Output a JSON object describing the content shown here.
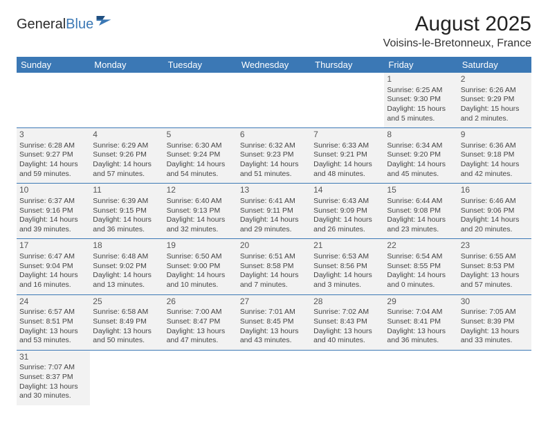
{
  "brand": {
    "part1": "General",
    "part2": "Blue"
  },
  "title": "August 2025",
  "location": "Voisins-le-Bretonneux, France",
  "colors": {
    "header_bg": "#3b78b5",
    "header_fg": "#ffffff",
    "cell_bg": "#f2f2f2",
    "border": "#3b78b5",
    "text": "#333333"
  },
  "day_headers": [
    "Sunday",
    "Monday",
    "Tuesday",
    "Wednesday",
    "Thursday",
    "Friday",
    "Saturday"
  ],
  "weeks": [
    [
      null,
      null,
      null,
      null,
      null,
      {
        "n": "1",
        "sr": "Sunrise: 6:25 AM",
        "ss": "Sunset: 9:30 PM",
        "dl": "Daylight: 15 hours and 5 minutes."
      },
      {
        "n": "2",
        "sr": "Sunrise: 6:26 AM",
        "ss": "Sunset: 9:29 PM",
        "dl": "Daylight: 15 hours and 2 minutes."
      }
    ],
    [
      {
        "n": "3",
        "sr": "Sunrise: 6:28 AM",
        "ss": "Sunset: 9:27 PM",
        "dl": "Daylight: 14 hours and 59 minutes."
      },
      {
        "n": "4",
        "sr": "Sunrise: 6:29 AM",
        "ss": "Sunset: 9:26 PM",
        "dl": "Daylight: 14 hours and 57 minutes."
      },
      {
        "n": "5",
        "sr": "Sunrise: 6:30 AM",
        "ss": "Sunset: 9:24 PM",
        "dl": "Daylight: 14 hours and 54 minutes."
      },
      {
        "n": "6",
        "sr": "Sunrise: 6:32 AM",
        "ss": "Sunset: 9:23 PM",
        "dl": "Daylight: 14 hours and 51 minutes."
      },
      {
        "n": "7",
        "sr": "Sunrise: 6:33 AM",
        "ss": "Sunset: 9:21 PM",
        "dl": "Daylight: 14 hours and 48 minutes."
      },
      {
        "n": "8",
        "sr": "Sunrise: 6:34 AM",
        "ss": "Sunset: 9:20 PM",
        "dl": "Daylight: 14 hours and 45 minutes."
      },
      {
        "n": "9",
        "sr": "Sunrise: 6:36 AM",
        "ss": "Sunset: 9:18 PM",
        "dl": "Daylight: 14 hours and 42 minutes."
      }
    ],
    [
      {
        "n": "10",
        "sr": "Sunrise: 6:37 AM",
        "ss": "Sunset: 9:16 PM",
        "dl": "Daylight: 14 hours and 39 minutes."
      },
      {
        "n": "11",
        "sr": "Sunrise: 6:39 AM",
        "ss": "Sunset: 9:15 PM",
        "dl": "Daylight: 14 hours and 36 minutes."
      },
      {
        "n": "12",
        "sr": "Sunrise: 6:40 AM",
        "ss": "Sunset: 9:13 PM",
        "dl": "Daylight: 14 hours and 32 minutes."
      },
      {
        "n": "13",
        "sr": "Sunrise: 6:41 AM",
        "ss": "Sunset: 9:11 PM",
        "dl": "Daylight: 14 hours and 29 minutes."
      },
      {
        "n": "14",
        "sr": "Sunrise: 6:43 AM",
        "ss": "Sunset: 9:09 PM",
        "dl": "Daylight: 14 hours and 26 minutes."
      },
      {
        "n": "15",
        "sr": "Sunrise: 6:44 AM",
        "ss": "Sunset: 9:08 PM",
        "dl": "Daylight: 14 hours and 23 minutes."
      },
      {
        "n": "16",
        "sr": "Sunrise: 6:46 AM",
        "ss": "Sunset: 9:06 PM",
        "dl": "Daylight: 14 hours and 20 minutes."
      }
    ],
    [
      {
        "n": "17",
        "sr": "Sunrise: 6:47 AM",
        "ss": "Sunset: 9:04 PM",
        "dl": "Daylight: 14 hours and 16 minutes."
      },
      {
        "n": "18",
        "sr": "Sunrise: 6:48 AM",
        "ss": "Sunset: 9:02 PM",
        "dl": "Daylight: 14 hours and 13 minutes."
      },
      {
        "n": "19",
        "sr": "Sunrise: 6:50 AM",
        "ss": "Sunset: 9:00 PM",
        "dl": "Daylight: 14 hours and 10 minutes."
      },
      {
        "n": "20",
        "sr": "Sunrise: 6:51 AM",
        "ss": "Sunset: 8:58 PM",
        "dl": "Daylight: 14 hours and 7 minutes."
      },
      {
        "n": "21",
        "sr": "Sunrise: 6:53 AM",
        "ss": "Sunset: 8:56 PM",
        "dl": "Daylight: 14 hours and 3 minutes."
      },
      {
        "n": "22",
        "sr": "Sunrise: 6:54 AM",
        "ss": "Sunset: 8:55 PM",
        "dl": "Daylight: 14 hours and 0 minutes."
      },
      {
        "n": "23",
        "sr": "Sunrise: 6:55 AM",
        "ss": "Sunset: 8:53 PM",
        "dl": "Daylight: 13 hours and 57 minutes."
      }
    ],
    [
      {
        "n": "24",
        "sr": "Sunrise: 6:57 AM",
        "ss": "Sunset: 8:51 PM",
        "dl": "Daylight: 13 hours and 53 minutes."
      },
      {
        "n": "25",
        "sr": "Sunrise: 6:58 AM",
        "ss": "Sunset: 8:49 PM",
        "dl": "Daylight: 13 hours and 50 minutes."
      },
      {
        "n": "26",
        "sr": "Sunrise: 7:00 AM",
        "ss": "Sunset: 8:47 PM",
        "dl": "Daylight: 13 hours and 47 minutes."
      },
      {
        "n": "27",
        "sr": "Sunrise: 7:01 AM",
        "ss": "Sunset: 8:45 PM",
        "dl": "Daylight: 13 hours and 43 minutes."
      },
      {
        "n": "28",
        "sr": "Sunrise: 7:02 AM",
        "ss": "Sunset: 8:43 PM",
        "dl": "Daylight: 13 hours and 40 minutes."
      },
      {
        "n": "29",
        "sr": "Sunrise: 7:04 AM",
        "ss": "Sunset: 8:41 PM",
        "dl": "Daylight: 13 hours and 36 minutes."
      },
      {
        "n": "30",
        "sr": "Sunrise: 7:05 AM",
        "ss": "Sunset: 8:39 PM",
        "dl": "Daylight: 13 hours and 33 minutes."
      }
    ],
    [
      {
        "n": "31",
        "sr": "Sunrise: 7:07 AM",
        "ss": "Sunset: 8:37 PM",
        "dl": "Daylight: 13 hours and 30 minutes."
      },
      null,
      null,
      null,
      null,
      null,
      null
    ]
  ]
}
